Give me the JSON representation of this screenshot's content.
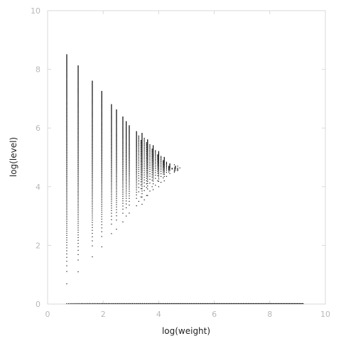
{
  "chart_data": {
    "type": "scatter",
    "title": "",
    "xlabel": "log(weight)",
    "ylabel": "log(level)",
    "xlim": [
      0,
      10
    ],
    "ylim": [
      0,
      10
    ],
    "xticks": [
      "0",
      "2",
      "4",
      "6",
      "8",
      "10"
    ],
    "yticks": [
      "0",
      "2",
      "4",
      "6",
      "8",
      "10"
    ],
    "grid": false,
    "colors": {
      "points": "#111111",
      "frame": "#d9d9d9",
      "ticks": "#b8b8b8",
      "labels": "#222222"
    },
    "columns": [
      {
        "x": 0.69,
        "ymin": 0.69,
        "ymax": 8.5
      },
      {
        "x": 1.1,
        "ymin": 1.1,
        "ymax": 8.12
      },
      {
        "x": 1.61,
        "ymin": 1.61,
        "ymax": 7.6
      },
      {
        "x": 1.95,
        "ymin": 1.95,
        "ymax": 7.25
      },
      {
        "x": 2.3,
        "ymin": 2.4,
        "ymax": 6.8
      },
      {
        "x": 2.48,
        "ymin": 2.55,
        "ymax": 6.62
      },
      {
        "x": 2.71,
        "ymin": 2.8,
        "ymax": 6.38
      },
      {
        "x": 2.83,
        "ymin": 3.0,
        "ymax": 6.22
      },
      {
        "x": 2.94,
        "ymin": 3.1,
        "ymax": 6.08
      },
      {
        "x": 3.2,
        "ymin": 3.35,
        "ymax": 5.88
      },
      {
        "x": 3.4,
        "ymin": 3.4,
        "ymax": 5.82
      },
      {
        "x": 3.6,
        "ymin": 3.7,
        "ymax": 5.6
      },
      {
        "x": 3.8,
        "ymin": 3.9,
        "ymax": 5.4
      },
      {
        "x": 4.0,
        "ymin": 4.0,
        "ymax": 5.2
      },
      {
        "x": 4.2,
        "ymin": 4.2,
        "ymax": 5.0
      },
      {
        "x": 4.4,
        "ymin": 4.45,
        "ymax": 4.78
      },
      {
        "x": 4.6,
        "ymin": 4.55,
        "ymax": 4.7
      }
    ],
    "baseline": {
      "y": 0,
      "xmin": 0.69,
      "xmax": 9.2
    }
  }
}
